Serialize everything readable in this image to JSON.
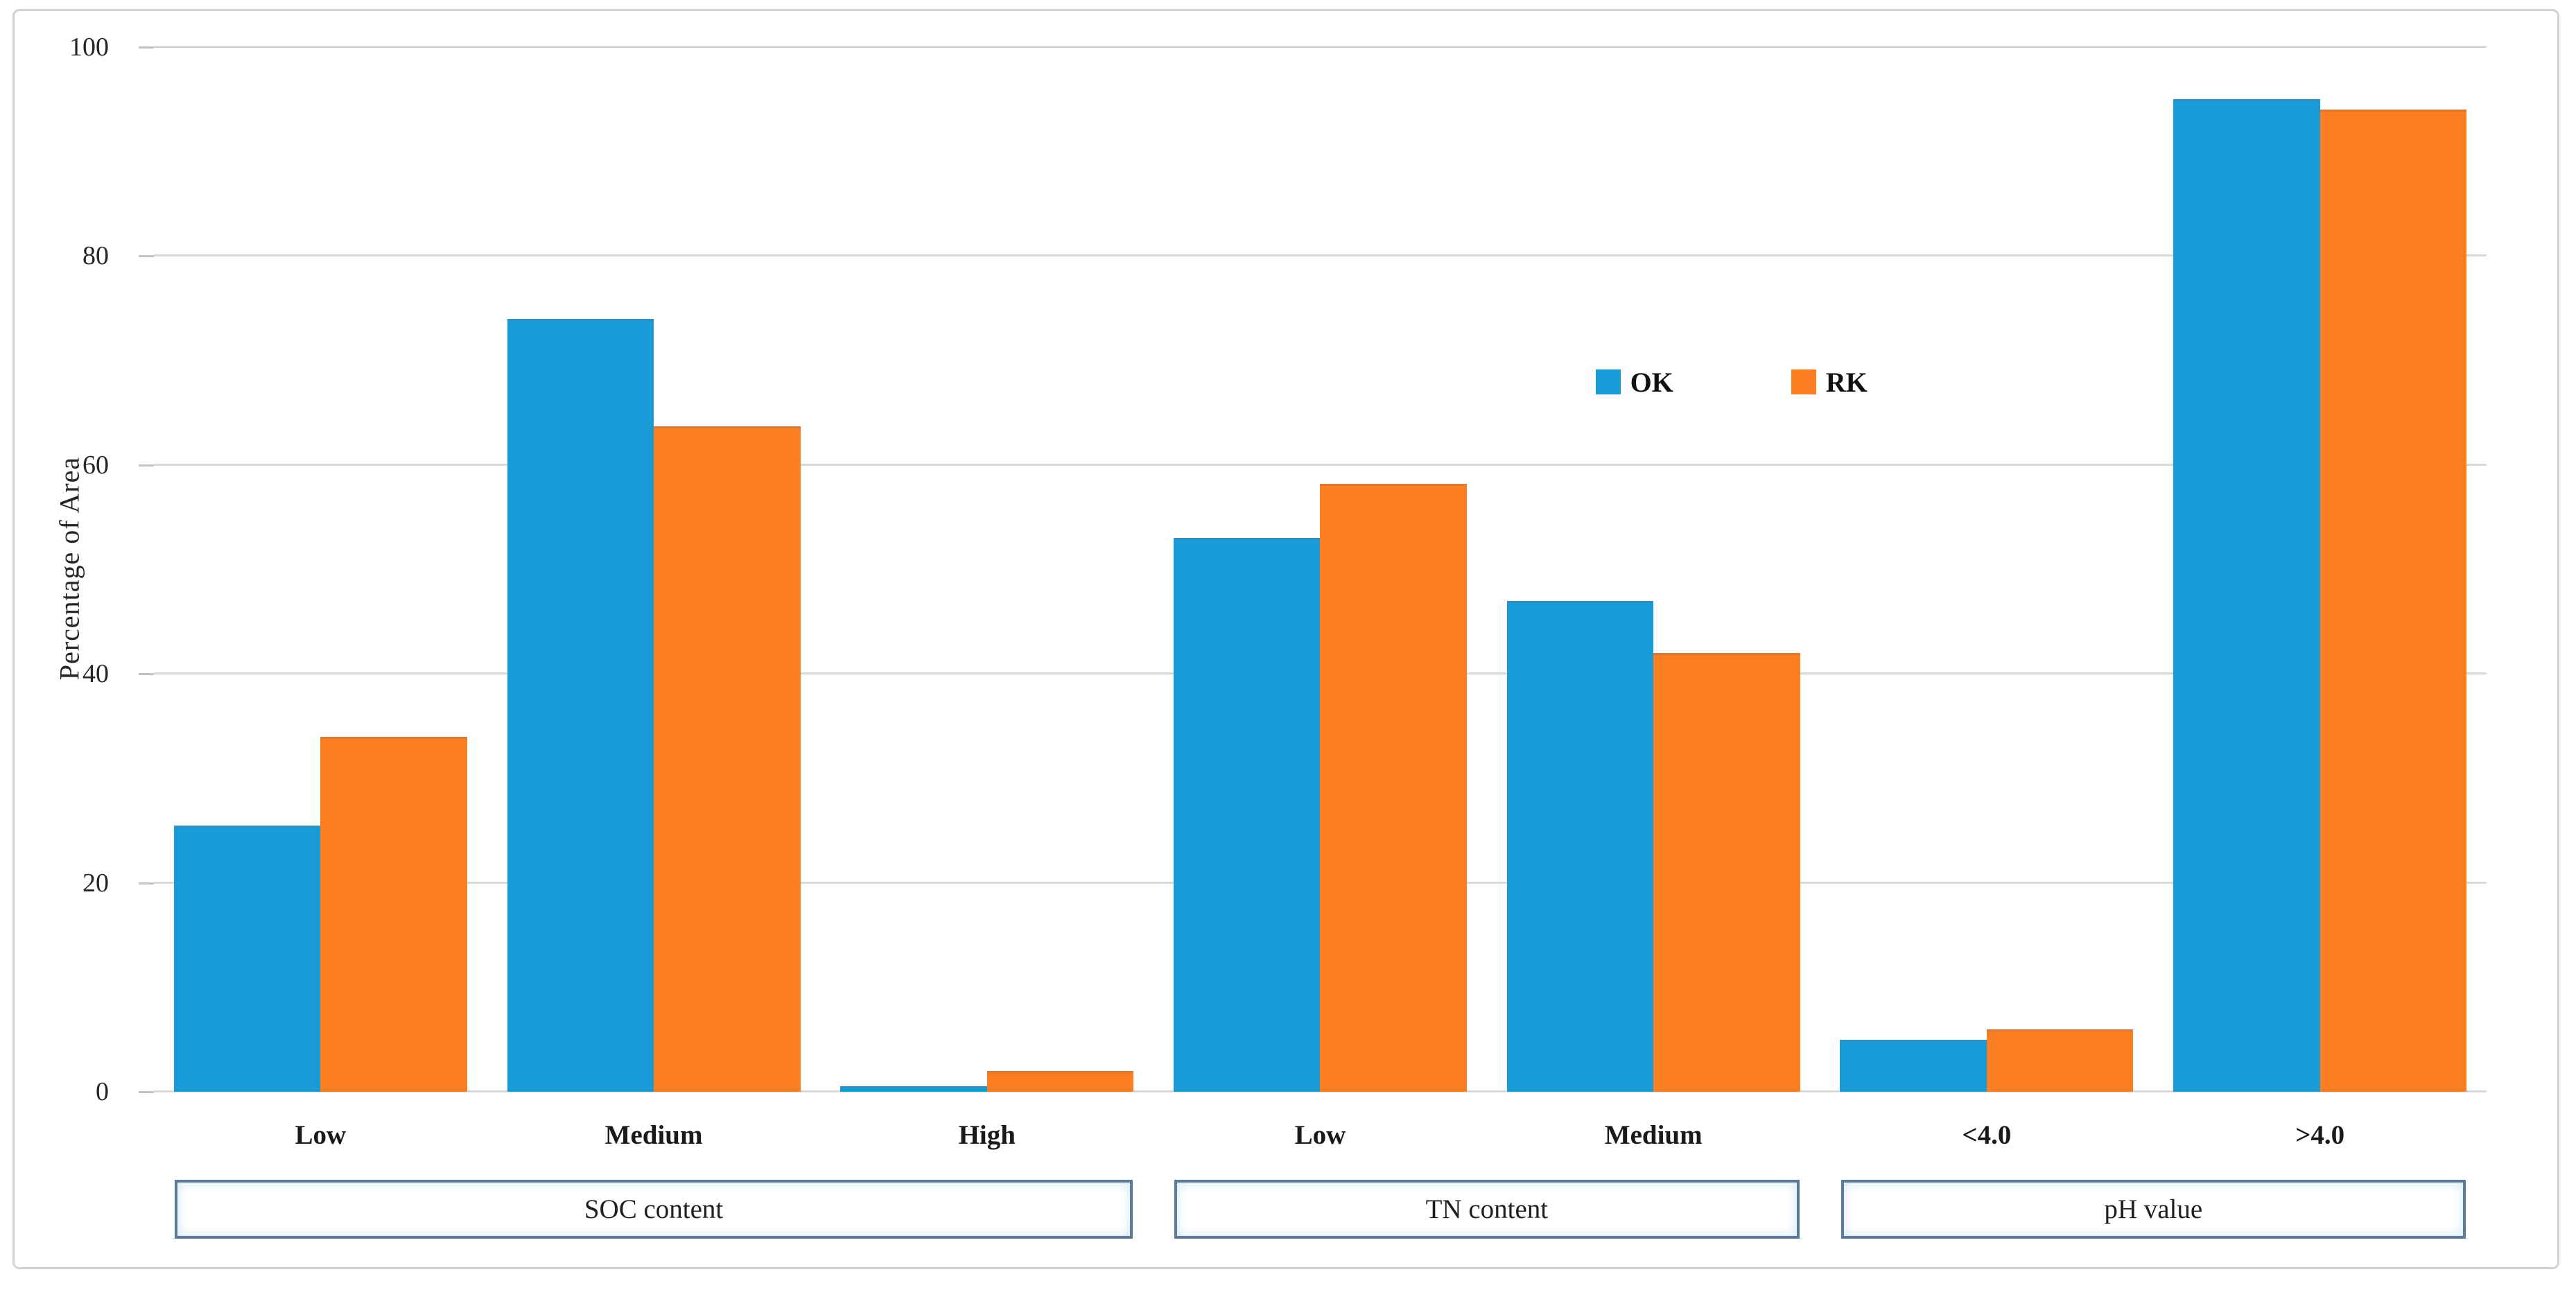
{
  "chart_data": {
    "type": "bar",
    "title": "",
    "ylabel": "Percentage of Area",
    "ylim": [
      0,
      100
    ],
    "yticks": [
      0,
      20,
      40,
      60,
      80,
      100
    ],
    "grid": "horizontal",
    "legend_position": "inside-upper-middle-right",
    "groups": [
      {
        "label": "SOC content",
        "categories": [
          "Low",
          "Medium",
          "High"
        ]
      },
      {
        "label": "TN content",
        "categories": [
          "Low",
          "Medium"
        ]
      },
      {
        "label": "pH value",
        "categories": [
          "<4.0",
          ">4.0"
        ]
      }
    ],
    "categories_flat": [
      "Low",
      "Medium",
      "High",
      "Low",
      "Medium",
      "<4.0",
      ">4.0"
    ],
    "series": [
      {
        "name": "OK",
        "color": "#199bd8",
        "values": [
          25.5,
          74,
          0.5,
          53,
          47,
          5,
          95
        ]
      },
      {
        "name": "RK",
        "color": "#fb7e23",
        "values": [
          34,
          63.7,
          2,
          58.2,
          42,
          6,
          94
        ]
      }
    ]
  },
  "colors": {
    "gridline": "#d9d9d9",
    "tick": "#c3c3c3",
    "frame_border": "#d2d2d2",
    "group_box_border": "#5e7a94",
    "text": "#262626"
  }
}
